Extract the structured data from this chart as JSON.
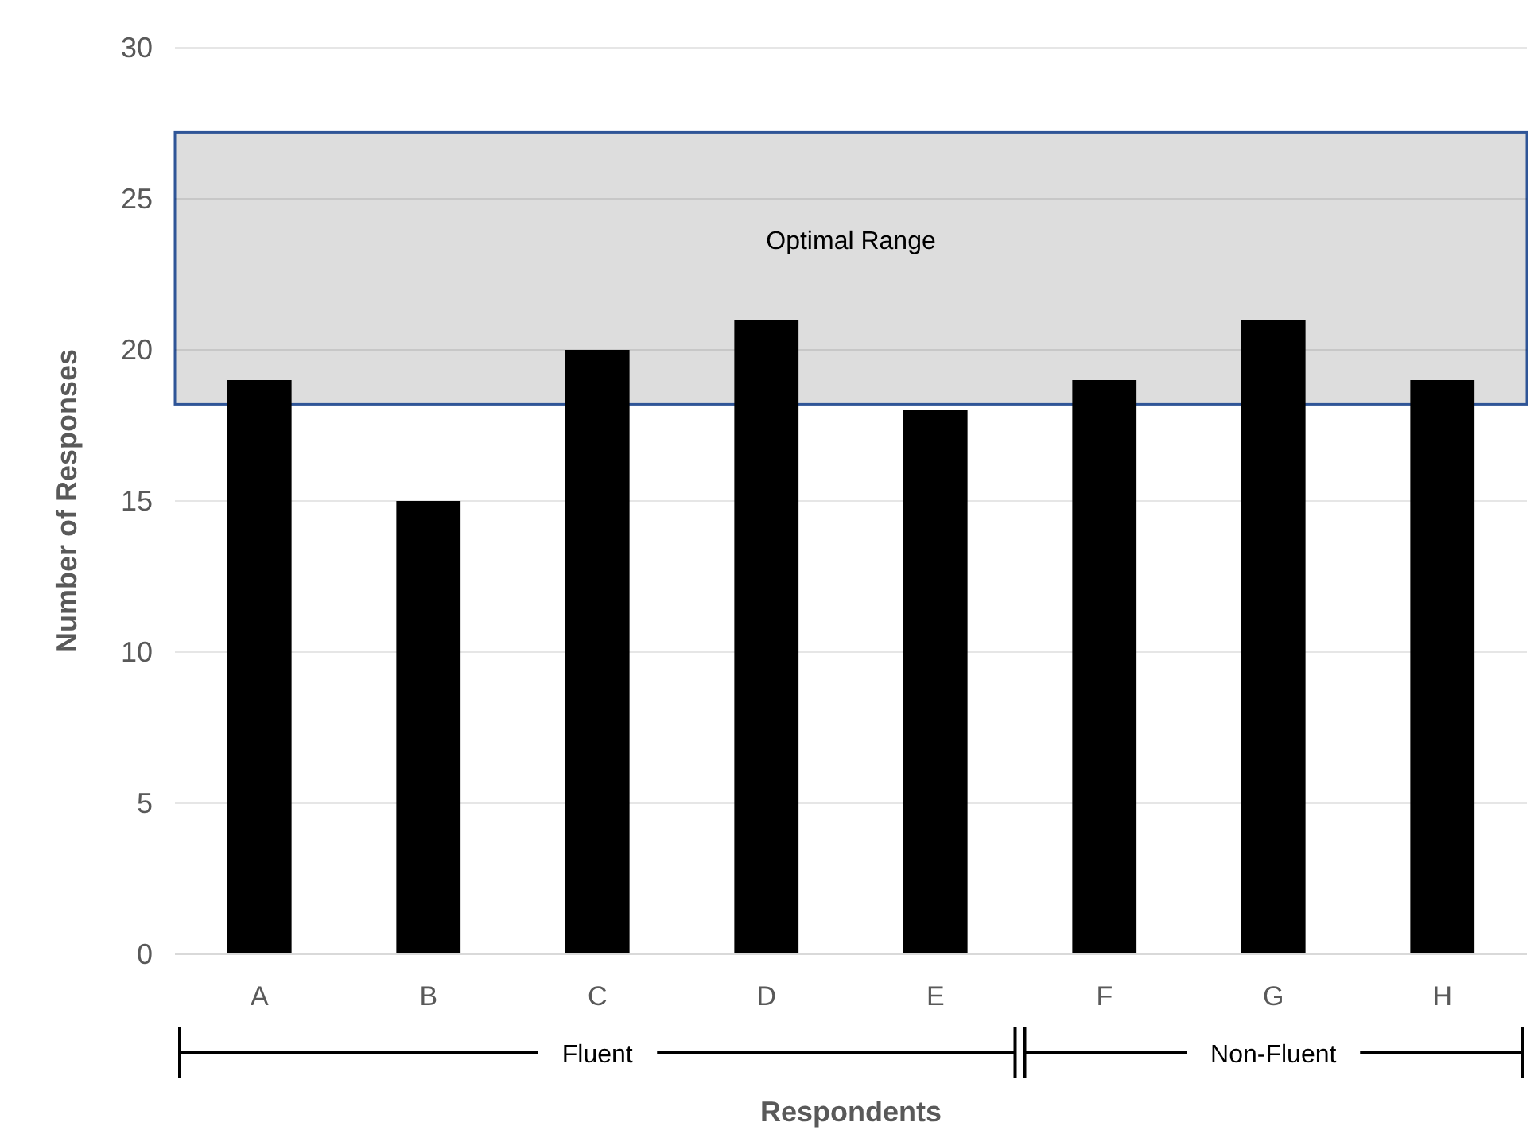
{
  "chart_data": {
    "type": "bar",
    "xlabel": "Respondents",
    "ylabel": "Number of Responses",
    "categories": [
      "A",
      "B",
      "C",
      "D",
      "E",
      "F",
      "G",
      "H"
    ],
    "values": [
      19,
      15,
      20,
      21,
      18,
      19,
      21,
      19
    ],
    "color": "#000000",
    "ylim": [
      0,
      30
    ],
    "yticks": [
      0,
      5,
      10,
      15,
      20,
      25,
      30
    ],
    "grid": "y",
    "bands": [
      {
        "axis": "y",
        "from": 18.2,
        "to": 27.2,
        "label": "Optimal Range",
        "color": "#d9d9d9"
      }
    ],
    "annotations": [
      "Fluent",
      "Non-Fluent"
    ]
  }
}
